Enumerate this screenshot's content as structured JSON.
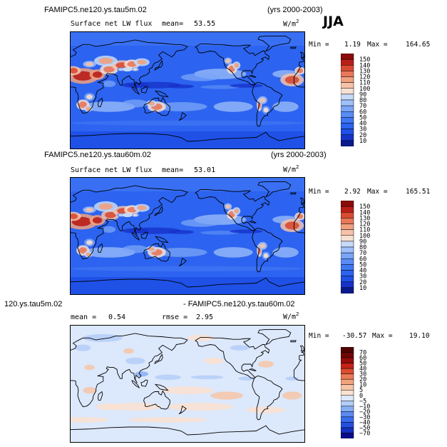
{
  "season": "JJA",
  "panels": [
    {
      "case_title": "FAMIPC5.ne120.ys.tau5m.02",
      "years": "(yrs 2000-2003)",
      "var_label": "Surface net LW flux",
      "stat_label": "mean=",
      "stat_value": "53.55",
      "unit": "W/m",
      "unit_exp": "2",
      "min_label": "Min =",
      "min_value": "1.19",
      "max_label": "Max =",
      "max_value": "164.65",
      "colorbar_levels": [
        "150",
        "140",
        "130",
        "120",
        "110",
        "100",
        "90",
        "80",
        "70",
        "60",
        "50",
        "40",
        "30",
        "20",
        "10"
      ]
    },
    {
      "case_title": "FAMIPC5.ne120.ys.tau60m.02",
      "years": "(yrs 2000-2003)",
      "var_label": "Surface net LW flux",
      "stat_label": "mean=",
      "stat_value": "53.01",
      "unit": "W/m",
      "unit_exp": "2",
      "min_label": "Min =",
      "min_value": "2.92",
      "max_label": "Max =",
      "max_value": "165.51",
      "colorbar_levels": [
        "150",
        "140",
        "130",
        "120",
        "110",
        "100",
        "90",
        "80",
        "70",
        "60",
        "50",
        "40",
        "30",
        "20",
        "10"
      ]
    },
    {
      "case_title_left": "120.ys.tau5m.02",
      "case_title_right": "- FAMIPC5.ne120.ys.tau60m.02",
      "stat_label": "mean =",
      "stat_value": "0.54",
      "rmse_label": "rmse =",
      "rmse_value": "2.95",
      "unit": "W/m",
      "unit_exp": "2",
      "min_label": "Min =",
      "min_value": "-30.57",
      "max_label": "Max =",
      "max_value": "19.10",
      "colorbar_levels": [
        "70",
        "60",
        "50",
        "40",
        "30",
        "20",
        "10",
        "5",
        "0",
        "−5",
        "−10",
        "−20",
        "−30",
        "−40",
        "−50",
        "−70"
      ]
    }
  ],
  "chart_data": [
    {
      "type": "heatmap",
      "title": "Surface net LW flux",
      "x_range": [
        0,
        360
      ],
      "y_range": [
        -90,
        90
      ],
      "min": 1.19,
      "max": 164.65,
      "mean": 53.55,
      "color_levels": [
        10,
        20,
        30,
        40,
        50,
        60,
        70,
        80,
        90,
        100,
        110,
        120,
        130,
        140,
        150
      ],
      "colors": [
        "#0a1a8c",
        "#1632c8",
        "#1e4fe6",
        "#2c63f0",
        "#3f76f3",
        "#5a8cf5",
        "#7aa5f7",
        "#9fc0f9",
        "#c6daf9",
        "#f6e0d2",
        "#f5c2a9",
        "#f1a07f",
        "#e9775a",
        "#d94a32",
        "#b81e17",
        "#8a0c0a"
      ]
    },
    {
      "type": "heatmap",
      "title": "Surface net LW flux",
      "x_range": [
        0,
        360
      ],
      "y_range": [
        -90,
        90
      ],
      "min": 2.92,
      "max": 165.51,
      "mean": 53.01,
      "color_levels": [
        10,
        20,
        30,
        40,
        50,
        60,
        70,
        80,
        90,
        100,
        110,
        120,
        130,
        140,
        150
      ],
      "colors": [
        "#0a1a8c",
        "#1632c8",
        "#1e4fe6",
        "#2c63f0",
        "#3f76f3",
        "#5a8cf5",
        "#7aa5f7",
        "#9fc0f9",
        "#c6daf9",
        "#f6e0d2",
        "#f5c2a9",
        "#f1a07f",
        "#e9775a",
        "#d94a32",
        "#b81e17",
        "#8a0c0a"
      ]
    },
    {
      "type": "heatmap",
      "title": "",
      "x_range": [
        0,
        360
      ],
      "y_range": [
        -90,
        90
      ],
      "min": -30.57,
      "max": 19.1,
      "mean": 0.54,
      "rmse": 2.95,
      "color_levels": [
        -70,
        -50,
        -40,
        -30,
        -20,
        -10,
        -5,
        0,
        5,
        10,
        20,
        30,
        40,
        50,
        60,
        70
      ],
      "colors": [
        "#0a0a8c",
        "#1630c0",
        "#2450e0",
        "#3a6cee",
        "#5a8af2",
        "#86aef5",
        "#b4cdf8",
        "#dce8fb",
        "#fbe1d0",
        "#f7c4a6",
        "#f2a27c",
        "#ea7a56",
        "#dc4c30",
        "#c42218",
        "#960c0a",
        "#6e0606",
        "#500404"
      ]
    }
  ]
}
